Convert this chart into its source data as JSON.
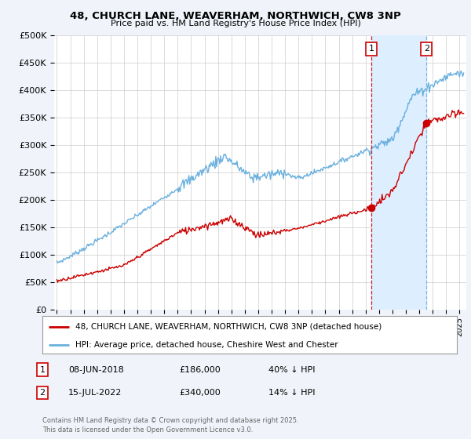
{
  "title": "48, CHURCH LANE, WEAVERHAM, NORTHWICH, CW8 3NP",
  "subtitle": "Price paid vs. HM Land Registry's House Price Index (HPI)",
  "ylabel_ticks": [
    "£0",
    "£50K",
    "£100K",
    "£150K",
    "£200K",
    "£250K",
    "£300K",
    "£350K",
    "£400K",
    "£450K",
    "£500K"
  ],
  "ytick_values": [
    0,
    50000,
    100000,
    150000,
    200000,
    250000,
    300000,
    350000,
    400000,
    450000,
    500000
  ],
  "ylim": [
    0,
    500000
  ],
  "xlim_start": 1994.8,
  "xlim_end": 2025.5,
  "hpi_color": "#6ab0de",
  "property_color": "#cc0000",
  "transaction1_date": 2018.44,
  "transaction1_price": 186000,
  "transaction1_label": "1",
  "transaction1_info": "08-JUN-2018    £186,000    40% ↓ HPI",
  "transaction2_date": 2022.54,
  "transaction2_price": 340000,
  "transaction2_label": "2",
  "transaction2_info": "15-JUL-2022    £340,000    14% ↓ HPI",
  "legend1": "48, CHURCH LANE, WEAVERHAM, NORTHWICH, CW8 3NP (detached house)",
  "legend2": "HPI: Average price, detached house, Cheshire West and Chester",
  "copyright": "Contains HM Land Registry data © Crown copyright and database right 2025.\nThis data is licensed under the Open Government Licence v3.0.",
  "background_color": "#f0f4fa",
  "plot_background": "#ffffff",
  "grid_color": "#cccccc",
  "shade_color": "#ddeeff",
  "marker_box_color": "#cc0000"
}
